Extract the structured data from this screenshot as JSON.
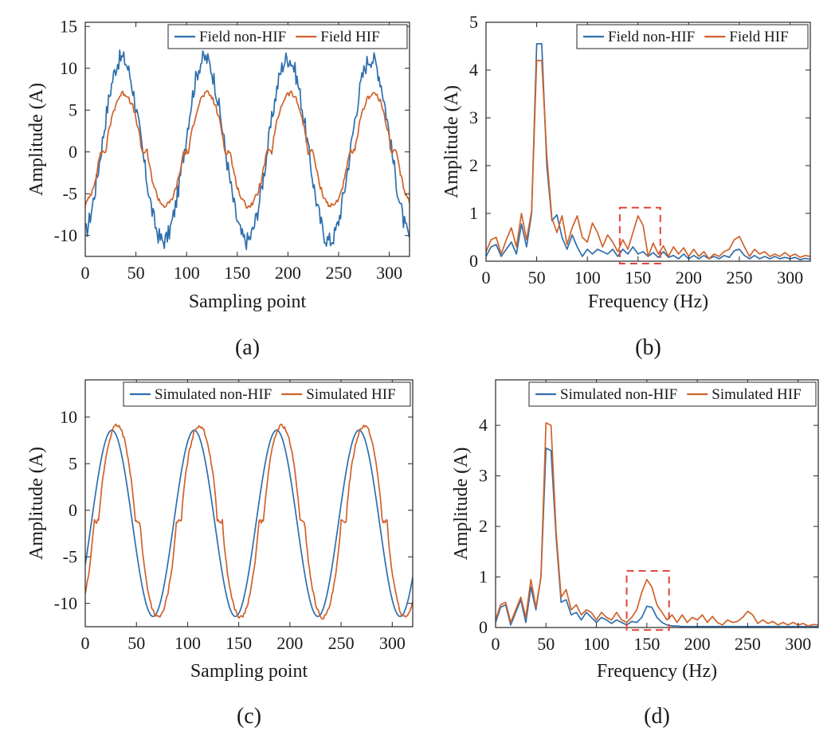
{
  "colors": {
    "blue": "#2f6fad",
    "orange": "#d0622a",
    "highlight": "#e0453a",
    "axis": "#262626"
  },
  "panels": [
    {
      "id": "a",
      "caption": "(a)",
      "title": "",
      "type": "line",
      "xlabel": "Sampling point",
      "ylabel": "Amplitude (A)",
      "xlim": [
        0,
        320
      ],
      "ylim": [
        -12.5,
        15.5
      ],
      "xticks": [
        0,
        50,
        100,
        150,
        200,
        250,
        300
      ],
      "yticks": [
        -10,
        -5,
        0,
        5,
        10,
        15
      ],
      "series": [
        {
          "name": "Field non-HIF",
          "color": "#2f6fad",
          "kind": "field-wave",
          "period": 82,
          "amplitude": 11.2,
          "phase_peak": 36,
          "noise": 1.1,
          "sample_step": 1
        },
        {
          "name": "Field HIF",
          "color": "#d0622a",
          "kind": "hif-wave",
          "period": 82,
          "amplitude": 7.0,
          "phase_peak": 38,
          "noise": 0.35,
          "sample_step": 1
        }
      ],
      "highlight": null
    },
    {
      "id": "b",
      "caption": "(b)",
      "title": "",
      "type": "line",
      "xlabel": "Frequency (Hz)",
      "ylabel": "Amplitude (A)",
      "xlim": [
        0,
        320
      ],
      "ylim": [
        0,
        5
      ],
      "xticks": [
        0,
        50,
        100,
        150,
        200,
        250,
        300
      ],
      "yticks": [
        0,
        1,
        2,
        3,
        4,
        5
      ],
      "series": [
        {
          "name": "Field non-HIF",
          "color": "#2f6fad",
          "x": [
            0,
            5,
            10,
            15,
            20,
            25,
            30,
            35,
            40,
            45,
            50,
            55,
            60,
            65,
            70,
            75,
            80,
            85,
            90,
            95,
            100,
            105,
            110,
            115,
            120,
            125,
            130,
            135,
            140,
            145,
            150,
            155,
            160,
            165,
            170,
            175,
            180,
            185,
            190,
            195,
            200,
            205,
            210,
            215,
            220,
            225,
            230,
            235,
            240,
            245,
            250,
            255,
            260,
            265,
            270,
            275,
            280,
            285,
            290,
            295,
            300,
            305,
            310,
            315,
            320
          ],
          "y": [
            0.1,
            0.3,
            0.35,
            0.1,
            0.25,
            0.4,
            0.15,
            0.78,
            0.3,
            1.0,
            4.55,
            4.55,
            2.0,
            0.85,
            0.97,
            0.5,
            0.25,
            0.55,
            0.3,
            0.1,
            0.25,
            0.15,
            0.25,
            0.2,
            0.15,
            0.25,
            0.1,
            0.25,
            0.15,
            0.3,
            0.15,
            0.2,
            0.1,
            0.18,
            0.08,
            0.2,
            0.08,
            0.12,
            0.05,
            0.15,
            0.05,
            0.12,
            0.05,
            0.12,
            0.05,
            0.1,
            0.05,
            0.12,
            0.08,
            0.22,
            0.25,
            0.12,
            0.05,
            0.12,
            0.05,
            0.1,
            0.05,
            0.1,
            0.05,
            0.08,
            0.05,
            0.08,
            0.03,
            0.06,
            0.04
          ]
        },
        {
          "name": "Field HIF",
          "color": "#d0622a",
          "x": [
            0,
            5,
            10,
            15,
            20,
            25,
            30,
            35,
            40,
            45,
            50,
            55,
            60,
            65,
            70,
            75,
            80,
            85,
            90,
            95,
            100,
            105,
            110,
            115,
            120,
            125,
            130,
            135,
            140,
            145,
            150,
            155,
            160,
            165,
            170,
            175,
            180,
            185,
            190,
            195,
            200,
            205,
            210,
            215,
            220,
            225,
            230,
            235,
            240,
            245,
            250,
            255,
            260,
            265,
            270,
            275,
            280,
            285,
            290,
            295,
            300,
            305,
            310,
            315,
            320
          ],
          "y": [
            0.2,
            0.45,
            0.5,
            0.15,
            0.45,
            0.7,
            0.3,
            1.0,
            0.45,
            1.05,
            4.2,
            4.2,
            2.2,
            0.9,
            0.6,
            0.95,
            0.35,
            0.7,
            0.95,
            0.5,
            0.4,
            0.8,
            0.6,
            0.3,
            0.55,
            0.4,
            0.2,
            0.45,
            0.25,
            0.6,
            0.95,
            0.75,
            0.1,
            0.38,
            0.15,
            0.32,
            0.1,
            0.3,
            0.15,
            0.28,
            0.1,
            0.25,
            0.1,
            0.2,
            0.05,
            0.15,
            0.1,
            0.2,
            0.25,
            0.45,
            0.52,
            0.3,
            0.1,
            0.25,
            0.15,
            0.2,
            0.1,
            0.15,
            0.1,
            0.18,
            0.1,
            0.15,
            0.08,
            0.12,
            0.1
          ]
        }
      ],
      "highlight": {
        "x0": 132,
        "x1": 172,
        "y0": -0.05,
        "y1": 1.12
      }
    },
    {
      "id": "c",
      "caption": "(c)",
      "title": "",
      "type": "line",
      "xlabel": "Sampling point",
      "ylabel": "Amplitude (A)",
      "xlim": [
        0,
        320
      ],
      "ylim": [
        -12.5,
        14
      ],
      "xticks": [
        0,
        50,
        100,
        150,
        200,
        250,
        300
      ],
      "yticks": [
        -10,
        -5,
        0,
        5,
        10
      ],
      "series": [
        {
          "name": "Simulated non-HIF",
          "color": "#2f6fad",
          "kind": "sim-wave",
          "period": 80.5,
          "amplitude": 10.0,
          "offset": -1.4,
          "phase_peak": 26,
          "noise": 0,
          "sample_step": 1
        },
        {
          "name": "Simulated HIF",
          "color": "#d0622a",
          "kind": "sim-hif-wave",
          "period": 80.5,
          "amplitude": 10.3,
          "offset": -1.2,
          "phase_peak": 31,
          "noise": 0.2,
          "sample_step": 1
        }
      ],
      "highlight": null
    },
    {
      "id": "d",
      "caption": "(d)",
      "title": "",
      "type": "line",
      "xlabel": "Frequency (Hz)",
      "ylabel": "Amplitude (A)",
      "xlim": [
        0,
        320
      ],
      "ylim": [
        0,
        4.9
      ],
      "xticks": [
        0,
        50,
        100,
        150,
        200,
        250,
        300
      ],
      "yticks": [
        0,
        1,
        2,
        3,
        4
      ],
      "series": [
        {
          "name": "Simulated non-HIF",
          "color": "#2f6fad",
          "x": [
            0,
            5,
            10,
            15,
            20,
            25,
            30,
            35,
            40,
            45,
            50,
            55,
            60,
            65,
            70,
            75,
            80,
            85,
            90,
            95,
            100,
            105,
            110,
            115,
            120,
            125,
            130,
            135,
            140,
            145,
            150,
            155,
            160,
            165,
            170,
            175,
            180,
            185,
            190,
            195,
            200,
            205,
            210,
            215,
            220,
            225,
            230,
            235,
            240,
            245,
            250,
            255,
            260,
            265,
            270,
            275,
            280,
            285,
            290,
            295,
            300,
            305,
            310,
            315,
            320
          ],
          "y": [
            0.1,
            0.4,
            0.45,
            0.05,
            0.3,
            0.55,
            0.1,
            0.8,
            0.35,
            1.0,
            3.55,
            3.5,
            1.8,
            0.5,
            0.55,
            0.25,
            0.3,
            0.15,
            0.3,
            0.2,
            0.1,
            0.2,
            0.15,
            0.08,
            0.15,
            0.1,
            0.05,
            0.12,
            0.1,
            0.2,
            0.42,
            0.4,
            0.2,
            0.1,
            0.05,
            0.03,
            0.03,
            0.02,
            0.02,
            0.02,
            0.02,
            0.02,
            0.02,
            0.02,
            0.02,
            0.02,
            0.02,
            0.02,
            0.02,
            0.02,
            0.02,
            0.02,
            0.02,
            0.02,
            0.02,
            0.02,
            0.02,
            0.02,
            0.02,
            0.02,
            0.02,
            0.02,
            0.02,
            0.02,
            0.02
          ]
        },
        {
          "name": "Simulated HIF",
          "color": "#d0622a",
          "x": [
            0,
            5,
            10,
            15,
            20,
            25,
            30,
            35,
            40,
            45,
            50,
            55,
            60,
            65,
            70,
            75,
            80,
            85,
            90,
            95,
            100,
            105,
            110,
            115,
            120,
            125,
            130,
            135,
            140,
            145,
            150,
            155,
            160,
            165,
            170,
            175,
            180,
            185,
            190,
            195,
            200,
            205,
            210,
            215,
            220,
            225,
            230,
            235,
            240,
            245,
            250,
            255,
            260,
            265,
            270,
            275,
            280,
            285,
            290,
            295,
            300,
            305,
            310,
            315,
            320
          ],
          "y": [
            0.15,
            0.45,
            0.5,
            0.1,
            0.35,
            0.6,
            0.2,
            0.95,
            0.4,
            1.0,
            4.05,
            4.0,
            1.9,
            0.6,
            0.75,
            0.35,
            0.45,
            0.25,
            0.35,
            0.3,
            0.15,
            0.3,
            0.2,
            0.15,
            0.3,
            0.15,
            0.1,
            0.2,
            0.35,
            0.7,
            0.95,
            0.8,
            0.45,
            0.3,
            0.15,
            0.25,
            0.1,
            0.25,
            0.1,
            0.2,
            0.15,
            0.25,
            0.1,
            0.22,
            0.1,
            0.05,
            0.15,
            0.1,
            0.12,
            0.2,
            0.32,
            0.25,
            0.08,
            0.15,
            0.08,
            0.12,
            0.05,
            0.1,
            0.05,
            0.1,
            0.05,
            0.08,
            0.03,
            0.06,
            0.05
          ]
        }
      ],
      "highlight": {
        "x0": 130,
        "x1": 172,
        "y0": -0.05,
        "y1": 1.12
      }
    }
  ],
  "chart_data": [
    {
      "type": "line",
      "title": "(a)",
      "xlabel": "Sampling point",
      "ylabel": "Amplitude (A)",
      "xlim": [
        0,
        320
      ],
      "ylim": [
        -12.5,
        15.5
      ],
      "legend": "top-right",
      "series": [
        {
          "name": "Field non-HIF",
          "description": "noisy sinusoid, amplitude ~11-13 A, period ~82 samples"
        },
        {
          "name": "Field HIF",
          "description": "distorted sinusoid with flat zero-crossings, amplitude ~7 A"
        }
      ]
    },
    {
      "type": "line",
      "title": "(b)",
      "xlabel": "Frequency (Hz)",
      "ylabel": "Amplitude (A)",
      "xlim": [
        0,
        320
      ],
      "ylim": [
        0,
        5
      ],
      "legend": "top-right",
      "series": [
        {
          "name": "Field non-HIF",
          "peak": [
            50,
            4.55
          ]
        },
        {
          "name": "Field HIF",
          "peak": [
            50,
            4.2
          ],
          "third_harmonic": [
            150,
            0.95
          ]
        }
      ]
    },
    {
      "type": "line",
      "title": "(c)",
      "xlabel": "Sampling point",
      "ylabel": "Amplitude (A)",
      "xlim": [
        0,
        320
      ],
      "ylim": [
        -12.5,
        14
      ],
      "legend": "top-right",
      "series": [
        {
          "name": "Simulated non-HIF",
          "description": "smooth sinusoid, range ~-11.5 to 8.6 A"
        },
        {
          "name": "Simulated HIF",
          "description": "distorted sinusoid with flattened zero crossings, range ~-11.5 to 9.5 A"
        }
      ]
    },
    {
      "type": "line",
      "title": "(d)",
      "xlabel": "Frequency (Hz)",
      "ylabel": "Amplitude (A)",
      "xlim": [
        0,
        320
      ],
      "ylim": [
        0,
        4.9
      ],
      "legend": "top-right",
      "series": [
        {
          "name": "Simulated non-HIF",
          "peak": [
            50,
            3.55
          ]
        },
        {
          "name": "Simulated HIF",
          "peak": [
            50,
            4.05
          ],
          "third_harmonic": [
            150,
            0.95
          ]
        }
      ]
    }
  ]
}
